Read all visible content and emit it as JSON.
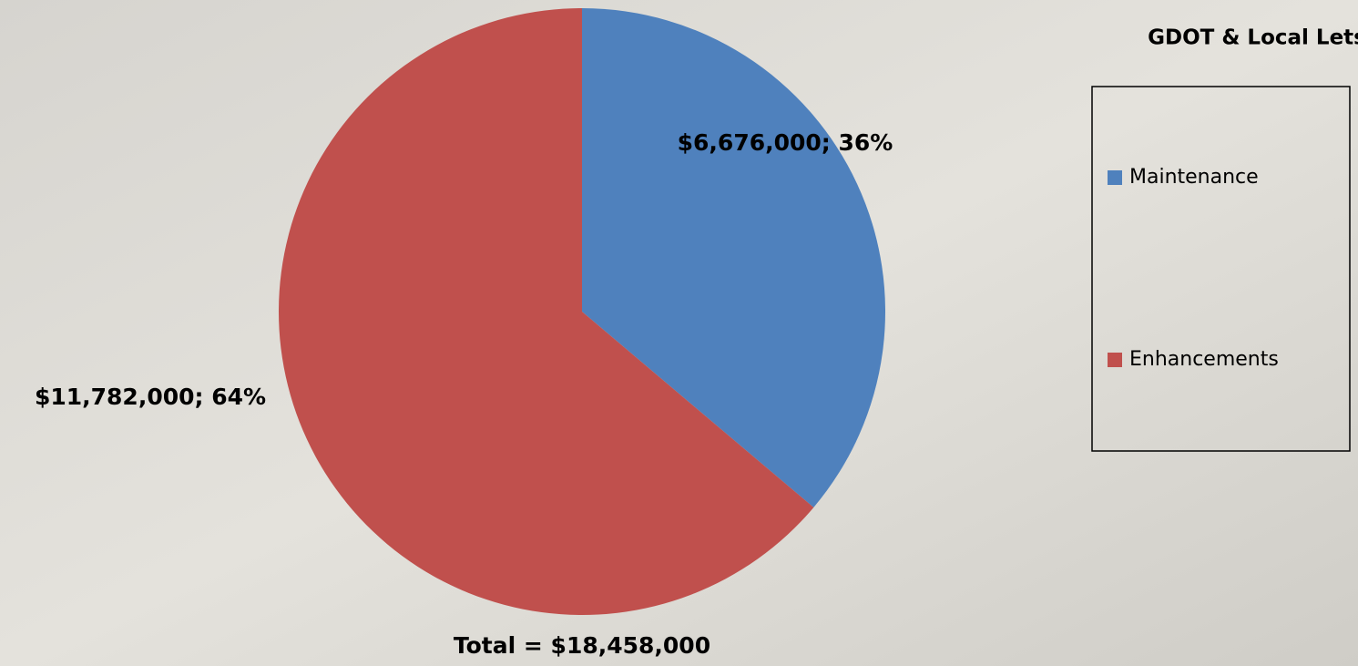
{
  "chart_data": {
    "type": "pie",
    "title": "GDOT & Local Lets",
    "categories": [
      "Maintenance",
      "Enhancements"
    ],
    "values": [
      6676000,
      11782000
    ],
    "value_labels": [
      "$6,676,000; 36%",
      "$11,782,000; 64%"
    ],
    "colors": [
      "#4f81bd",
      "#c0504d"
    ],
    "annotation": "Total = $18,458,000",
    "legend": "right"
  }
}
